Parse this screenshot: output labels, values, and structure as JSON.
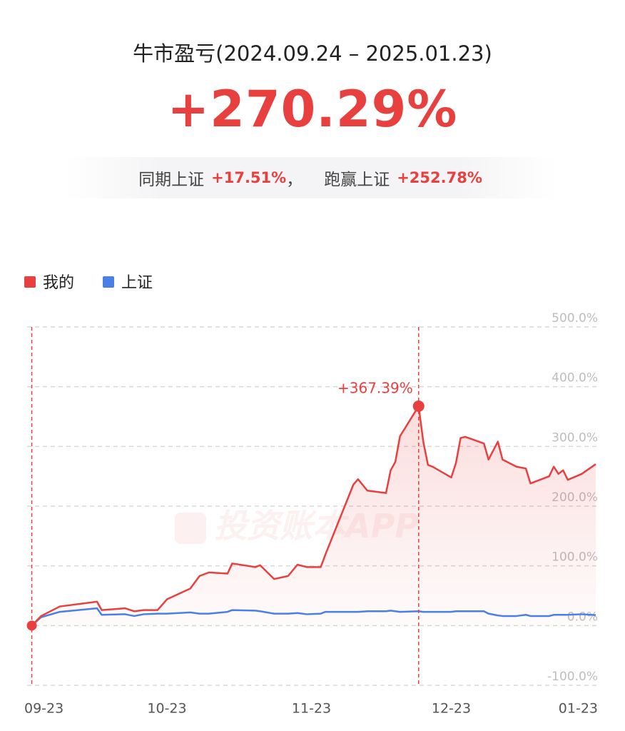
{
  "header": {
    "title": "牛市盈亏(2024.09.24 – 2025.01.23)",
    "total_return": "+270.29%",
    "summary": [
      {
        "label": "同期上证",
        "value": "+17.51%"
      },
      {
        "label": "跑赢上证",
        "value": "+252.78%"
      }
    ],
    "separator": "，"
  },
  "chart_data": {
    "type": "line",
    "watermark": "投资账本APP",
    "x": [
      "09-24",
      "09-26",
      "09-30",
      "10-08",
      "10-09",
      "10-14",
      "10-16",
      "10-18",
      "10-21",
      "10-23",
      "10-28",
      "10-30",
      "11-01",
      "11-05",
      "11-06",
      "11-11",
      "11-12",
      "11-15",
      "11-18",
      "11-20",
      "11-22",
      "11-25",
      "11-26",
      "11-28",
      "12-02",
      "12-03",
      "12-05",
      "12-09",
      "12-10",
      "12-11",
      "12-12",
      "12-16",
      "12-17",
      "12-18",
      "12-19",
      "12-23",
      "12-24",
      "12-25",
      "12-26",
      "12-30",
      "12-31",
      "01-02",
      "01-03",
      "01-06",
      "01-08",
      "01-09",
      "01-13",
      "01-14",
      "01-15",
      "01-16",
      "01-17",
      "01-20",
      "01-23"
    ],
    "series": [
      {
        "name": "我的",
        "color": "#e8403f",
        "values": [
          0,
          16,
          32,
          40,
          26,
          29,
          24,
          26,
          26,
          44,
          62,
          83,
          89,
          87,
          104,
          98,
          101,
          78,
          83,
          102,
          98,
          98,
          119,
          158,
          236,
          245,
          226,
          222,
          260,
          274,
          317,
          367.39,
          308,
          269,
          266,
          248,
          272,
          314,
          316,
          305,
          278,
          308,
          278,
          266,
          263,
          238,
          250,
          266,
          254,
          260,
          244,
          254,
          270.29
        ]
      },
      {
        "name": "上证",
        "color": "#4a7fe8",
        "values": [
          0,
          14,
          23,
          29,
          18,
          19,
          16,
          19,
          20,
          20,
          22,
          20,
          20,
          23,
          26,
          25,
          24,
          20,
          20,
          21,
          19,
          20,
          23,
          23,
          23,
          23,
          24,
          24,
          25,
          24,
          23,
          24,
          23,
          23,
          23,
          23,
          24,
          24,
          24,
          24,
          20,
          17,
          16,
          16,
          18,
          16,
          16,
          18,
          18,
          18,
          18,
          19,
          17.51
        ]
      }
    ],
    "annotation": "+367.39%",
    "xlim": [
      "09-23",
      "01-23"
    ],
    "xticks": [
      "09-23",
      "10-23",
      "11-23",
      "12-23",
      "01-23"
    ],
    "ylim": [
      -100,
      500
    ],
    "yticks": [
      {
        "value": -100,
        "label": "-100.0%"
      },
      {
        "value": 0,
        "label": "0.0%"
      },
      {
        "value": 100,
        "label": "100.0%"
      },
      {
        "value": 200,
        "label": "200.0%"
      },
      {
        "value": 300,
        "label": "300.0%"
      },
      {
        "value": 400,
        "label": "400.0%"
      },
      {
        "value": 500,
        "label": "500.0%"
      }
    ],
    "grid": true,
    "legend": "top-left"
  }
}
